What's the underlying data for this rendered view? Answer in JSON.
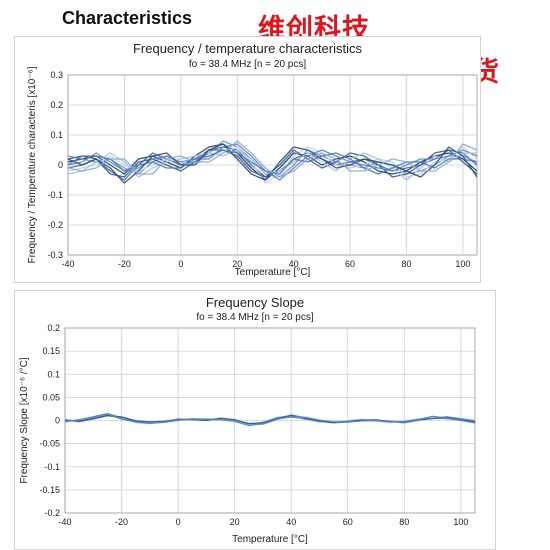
{
  "heading": "Characteristics",
  "watermark": {
    "line1": "维创科技",
    "line2": "正品现货"
  },
  "chart_data": [
    {
      "type": "line",
      "title": "Frequency / temperature characteristics",
      "subtitle": "fo = 38.4 MHz [n = 20 pcs]",
      "xlabel": "Temperature [°C]",
      "ylabel": "Frequency / Temperature characteris [x10⁻⁶]",
      "xlim": [
        -40,
        105
      ],
      "ylim": [
        -0.3,
        0.3
      ],
      "xticks": [
        -40,
        -20,
        0,
        20,
        40,
        60,
        80,
        100
      ],
      "yticks": [
        -0.3,
        -0.2,
        -0.1,
        0,
        0.1,
        0.2,
        0.3
      ],
      "grid": true,
      "x": [
        -40,
        -35,
        -30,
        -25,
        -20,
        -15,
        -10,
        -5,
        0,
        5,
        10,
        15,
        20,
        25,
        30,
        35,
        40,
        45,
        50,
        55,
        60,
        65,
        70,
        75,
        80,
        85,
        90,
        95,
        100,
        105
      ],
      "series": [
        {
          "values": [
            0.01,
            0.02,
            0.03,
            0.0,
            -0.03,
            0.02,
            0.03,
            0.01,
            -0.01,
            0.03,
            0.06,
            0.07,
            0.04,
            -0.01,
            -0.05,
            -0.01,
            0.04,
            0.03,
            0.0,
            0.02,
            0.03,
            0.01,
            -0.02,
            -0.03,
            -0.02,
            0.01,
            0.03,
            0.04,
            0.02,
            -0.02
          ]
        },
        {
          "values": [
            -0.01,
            0.0,
            0.02,
            -0.02,
            -0.05,
            0.0,
            0.04,
            0.02,
            0.0,
            0.02,
            0.05,
            0.06,
            0.05,
            0.0,
            -0.04,
            -0.02,
            0.02,
            0.04,
            0.02,
            0.0,
            0.01,
            0.02,
            0.0,
            -0.02,
            -0.01,
            0.0,
            0.02,
            0.05,
            0.04,
            0.0
          ]
        },
        {
          "values": [
            0.03,
            0.02,
            0.01,
            0.02,
            -0.01,
            -0.03,
            0.01,
            0.03,
            0.0,
            0.01,
            0.04,
            0.08,
            0.06,
            0.02,
            -0.03,
            -0.04,
            0.0,
            0.05,
            0.03,
            0.01,
            0.0,
            -0.01,
            0.01,
            0.0,
            -0.03,
            -0.02,
            0.0,
            0.03,
            0.03,
            0.01
          ]
        },
        {
          "values": [
            -0.02,
            -0.01,
            0.0,
            0.03,
            0.0,
            -0.02,
            0.0,
            0.02,
            0.01,
            0.0,
            0.03,
            0.04,
            0.06,
            0.01,
            -0.06,
            -0.03,
            0.03,
            0.06,
            0.04,
            0.0,
            -0.01,
            0.0,
            0.02,
            0.01,
            -0.04,
            -0.03,
            0.01,
            0.02,
            0.06,
            0.02
          ]
        },
        {
          "values": [
            0.02,
            0.03,
            0.02,
            -0.03,
            -0.04,
            0.01,
            0.02,
            0.0,
            -0.02,
            0.01,
            0.05,
            0.05,
            0.03,
            -0.02,
            -0.04,
            0.0,
            0.05,
            0.02,
            -0.01,
            0.01,
            0.04,
            0.03,
            0.0,
            -0.04,
            -0.03,
            0.0,
            0.04,
            0.05,
            0.01,
            -0.03
          ]
        },
        {
          "values": [
            0.0,
            0.01,
            0.04,
            0.01,
            -0.02,
            -0.01,
            0.02,
            0.03,
            0.01,
            0.02,
            0.02,
            0.06,
            0.07,
            0.03,
            -0.02,
            -0.05,
            -0.01,
            0.03,
            0.05,
            0.03,
            0.01,
            0.0,
            -0.01,
            -0.02,
            0.0,
            0.02,
            0.02,
            0.03,
            0.05,
            0.03
          ]
        },
        {
          "values": [
            -0.03,
            -0.02,
            0.01,
            0.04,
            0.01,
            -0.04,
            -0.01,
            0.01,
            0.02,
            0.03,
            0.04,
            0.03,
            0.05,
            0.02,
            -0.03,
            -0.02,
            0.01,
            0.04,
            0.01,
            -0.02,
            0.02,
            0.04,
            0.02,
            -0.01,
            -0.05,
            -0.01,
            0.03,
            0.01,
            0.04,
            0.04
          ]
        },
        {
          "values": [
            0.02,
            0.0,
            0.02,
            -0.01,
            -0.06,
            -0.02,
            0.03,
            0.04,
            0.0,
            0.0,
            0.05,
            0.07,
            0.02,
            -0.03,
            -0.05,
            0.01,
            0.06,
            0.05,
            0.02,
            -0.01,
            0.0,
            0.02,
            0.01,
            0.0,
            -0.02,
            -0.04,
            0.0,
            0.06,
            0.03,
            -0.04
          ]
        },
        {
          "values": [
            0.0,
            0.03,
            0.03,
            0.02,
            -0.02,
            0.0,
            0.01,
            -0.01,
            -0.01,
            0.02,
            0.03,
            0.05,
            0.04,
            0.01,
            -0.02,
            -0.03,
            0.02,
            0.01,
            0.03,
            0.04,
            0.02,
            -0.01,
            -0.03,
            -0.01,
            0.01,
            0.01,
            -0.01,
            0.02,
            0.02,
            0.01
          ]
        },
        {
          "values": [
            -0.01,
            -0.02,
            -0.01,
            0.02,
            0.02,
            -0.03,
            -0.03,
            0.02,
            0.03,
            0.01,
            0.01,
            0.04,
            0.08,
            0.04,
            -0.01,
            -0.04,
            -0.02,
            0.02,
            0.04,
            0.02,
            -0.02,
            -0.02,
            0.0,
            0.02,
            0.01,
            -0.02,
            -0.02,
            0.01,
            0.07,
            0.05
          ]
        }
      ]
    },
    {
      "type": "line",
      "title": "Frequency Slope",
      "subtitle": "fo = 38.4 MHz [n = 20 pcs]",
      "xlabel": "Temperature [°C]",
      "ylabel": "Frequency Slope [x10⁻⁶ /°C]",
      "xlim": [
        -40,
        105
      ],
      "ylim": [
        -0.2,
        0.2
      ],
      "xticks": [
        -40,
        -20,
        0,
        20,
        40,
        60,
        80,
        100
      ],
      "yticks": [
        -0.2,
        -0.15,
        -0.1,
        -0.05,
        0,
        0.05,
        0.1,
        0.15,
        0.2
      ],
      "grid": true,
      "x": [
        -40,
        -35,
        -30,
        -25,
        -20,
        -15,
        -10,
        -5,
        0,
        5,
        10,
        15,
        20,
        25,
        30,
        35,
        40,
        45,
        50,
        55,
        60,
        65,
        70,
        75,
        80,
        85,
        90,
        95,
        100,
        105
      ],
      "series": [
        {
          "values": [
            0.0,
            -0.002,
            0.005,
            0.012,
            0.004,
            -0.004,
            -0.006,
            -0.002,
            0.003,
            0.002,
            0.001,
            0.004,
            0.0,
            -0.008,
            -0.004,
            0.006,
            0.008,
            0.003,
            -0.003,
            -0.004,
            -0.001,
            0.002,
            -0.001,
            -0.004,
            -0.002,
            0.003,
            0.006,
            0.004,
            0.001,
            -0.004
          ]
        },
        {
          "values": [
            -0.002,
            0.001,
            0.008,
            0.015,
            0.006,
            -0.002,
            -0.005,
            -0.003,
            0.001,
            0.003,
            0.002,
            0.002,
            -0.002,
            -0.01,
            -0.006,
            0.004,
            0.01,
            0.005,
            -0.002,
            -0.005,
            -0.003,
            0.001,
            0.0,
            -0.002,
            -0.004,
            0.001,
            0.008,
            0.006,
            0.003,
            -0.002
          ]
        },
        {
          "values": [
            0.002,
            -0.003,
            0.003,
            0.01,
            0.008,
            0.0,
            -0.004,
            -0.004,
            0.0,
            0.004,
            0.003,
            0.001,
            -0.001,
            -0.006,
            -0.008,
            0.002,
            0.012,
            0.006,
            0.0,
            -0.003,
            -0.004,
            0.0,
            0.002,
            -0.003,
            -0.005,
            0.0,
            0.005,
            0.008,
            0.004,
            0.0
          ]
        },
        {
          "values": [
            -0.001,
            0.0,
            0.006,
            0.013,
            0.005,
            -0.005,
            -0.007,
            -0.001,
            0.002,
            0.001,
            0.004,
            0.003,
            0.001,
            -0.009,
            -0.003,
            0.007,
            0.009,
            0.002,
            -0.004,
            -0.002,
            0.0,
            0.003,
            -0.002,
            -0.005,
            -0.001,
            0.004,
            0.007,
            0.005,
            0.002,
            -0.006
          ]
        },
        {
          "values": [
            0.001,
            -0.001,
            0.004,
            0.011,
            0.007,
            -0.001,
            -0.003,
            -0.002,
            0.002,
            0.002,
            0.0,
            0.005,
            0.002,
            -0.007,
            -0.005,
            0.005,
            0.011,
            0.004,
            -0.001,
            -0.004,
            -0.002,
            0.001,
            0.001,
            -0.002,
            -0.003,
            0.002,
            0.004,
            0.007,
            0.002,
            -0.003
          ]
        },
        {
          "values": [
            -0.003,
            0.002,
            0.007,
            0.014,
            0.003,
            -0.003,
            -0.006,
            -0.004,
            0.001,
            0.003,
            0.003,
            0.002,
            -0.001,
            -0.011,
            -0.007,
            0.003,
            0.008,
            0.007,
            0.001,
            -0.003,
            -0.003,
            -0.001,
            0.0,
            -0.003,
            -0.002,
            0.002,
            0.009,
            0.005,
            0.0,
            -0.005
          ]
        }
      ]
    }
  ],
  "colors": {
    "series": [
      "#1f3a5f",
      "#2b4a7a",
      "#34598f",
      "#3f6aa8",
      "#4a78b5",
      "#5a86c0",
      "#6a95c9",
      "#88a9d3",
      "#a6bedd",
      "#c3d2e8"
    ],
    "grid": "#cfcfcf",
    "watermark": "#e0141c"
  }
}
